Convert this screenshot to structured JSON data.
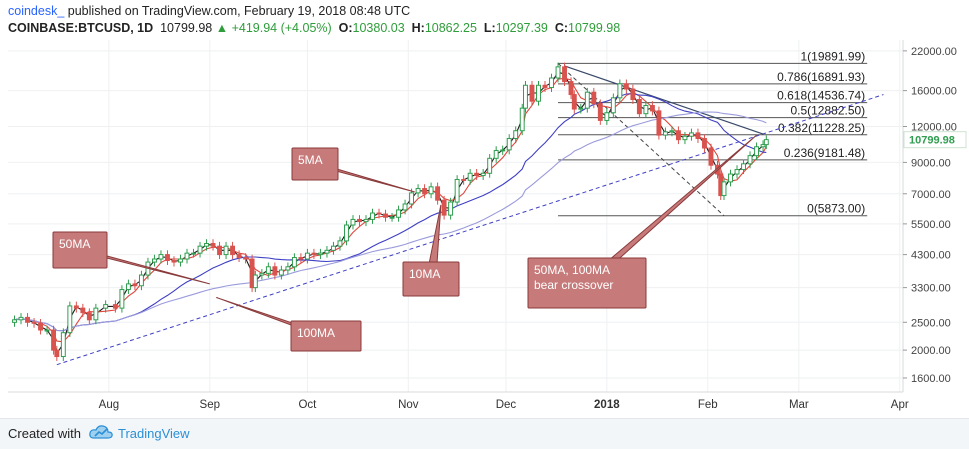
{
  "header": {
    "author": "coindesk_",
    "published": "published on TradingView.com, February 19, 2018 08:48 UTC",
    "symbol": "COINBASE:BTCUSD, 1D",
    "price": "10799.98",
    "change": "+419.94 (+4.05%)",
    "open_label": "O:",
    "open": "10380.03",
    "high_label": "H:",
    "high": "10862.25",
    "low_label": "L:",
    "low": "10297.39",
    "close_label": "C:",
    "close": "10799.98"
  },
  "footer": {
    "created": "Created with",
    "brand": "TradingView"
  },
  "chart_data": {
    "type": "candlestick",
    "y_scale": "log",
    "ylim": [
      1430,
      24000
    ],
    "y_ticks": [
      "22000.00",
      "16000.00",
      "12000.00",
      "9000.00",
      "7000.00",
      "5500.00",
      "4300.00",
      "3300.00",
      "2500.00",
      "2000.00",
      "1600.00"
    ],
    "y_tick_values": [
      22000,
      16000,
      12000,
      9000,
      7000,
      5500,
      4300,
      3300,
      2500,
      2000,
      1600
    ],
    "x_labels": [
      "Aug",
      "Sep",
      "Oct",
      "Nov",
      "Dec",
      "2018",
      "Feb",
      "Mar",
      "Apr"
    ],
    "x_label_dates": [
      "2017-08-01",
      "2017-09-01",
      "2017-10-01",
      "2017-11-01",
      "2017-12-01",
      "2018-01-01",
      "2018-02-01",
      "2018-03-01",
      "2018-04-01"
    ],
    "x_range": [
      "2017-07-01",
      "2018-04-02"
    ],
    "last_price": "10799.98",
    "candles": [
      {
        "date": "2017-07-03",
        "close": 2550
      },
      {
        "date": "2017-07-05",
        "close": 2600
      },
      {
        "date": "2017-07-07",
        "close": 2500
      },
      {
        "date": "2017-07-09",
        "close": 2480
      },
      {
        "date": "2017-07-11",
        "close": 2350
      },
      {
        "date": "2017-07-13",
        "close": 2350
      },
      {
        "date": "2017-07-15",
        "close": 2000
      },
      {
        "date": "2017-07-16",
        "close": 1900
      },
      {
        "date": "2017-07-18",
        "close": 2300
      },
      {
        "date": "2017-07-20",
        "close": 2850
      },
      {
        "date": "2017-07-22",
        "close": 2800
      },
      {
        "date": "2017-07-24",
        "close": 2700
      },
      {
        "date": "2017-07-26",
        "close": 2550
      },
      {
        "date": "2017-07-28",
        "close": 2800
      },
      {
        "date": "2017-07-31",
        "close": 2880
      },
      {
        "date": "2017-08-03",
        "close": 2800
      },
      {
        "date": "2017-08-05",
        "close": 3250
      },
      {
        "date": "2017-08-07",
        "close": 3400
      },
      {
        "date": "2017-08-09",
        "close": 3350
      },
      {
        "date": "2017-08-11",
        "close": 3650
      },
      {
        "date": "2017-08-13",
        "close": 4050
      },
      {
        "date": "2017-08-15",
        "close": 4150
      },
      {
        "date": "2017-08-17",
        "close": 4300
      },
      {
        "date": "2017-08-19",
        "close": 4100
      },
      {
        "date": "2017-08-21",
        "close": 4050
      },
      {
        "date": "2017-08-23",
        "close": 4150
      },
      {
        "date": "2017-08-25",
        "close": 4350
      },
      {
        "date": "2017-08-27",
        "close": 4350
      },
      {
        "date": "2017-08-29",
        "close": 4600
      },
      {
        "date": "2017-08-31",
        "close": 4700
      },
      {
        "date": "2017-09-02",
        "close": 4600
      },
      {
        "date": "2017-09-04",
        "close": 4300
      },
      {
        "date": "2017-09-06",
        "close": 4600
      },
      {
        "date": "2017-09-08",
        "close": 4300
      },
      {
        "date": "2017-09-10",
        "close": 4200
      },
      {
        "date": "2017-09-12",
        "close": 4150
      },
      {
        "date": "2017-09-14",
        "close": 3300
      },
      {
        "date": "2017-09-15",
        "close": 3650
      },
      {
        "date": "2017-09-17",
        "close": 3700
      },
      {
        "date": "2017-09-19",
        "close": 3900
      },
      {
        "date": "2017-09-21",
        "close": 3650
      },
      {
        "date": "2017-09-23",
        "close": 3800
      },
      {
        "date": "2017-09-25",
        "close": 3900
      },
      {
        "date": "2017-09-27",
        "close": 4200
      },
      {
        "date": "2017-09-29",
        "close": 4150
      },
      {
        "date": "2017-10-01",
        "close": 4350
      },
      {
        "date": "2017-10-03",
        "close": 4300
      },
      {
        "date": "2017-10-05",
        "close": 4350
      },
      {
        "date": "2017-10-07",
        "close": 4450
      },
      {
        "date": "2017-10-09",
        "close": 4600
      },
      {
        "date": "2017-10-11",
        "close": 4800
      },
      {
        "date": "2017-10-13",
        "close": 5450
      },
      {
        "date": "2017-10-15",
        "close": 5700
      },
      {
        "date": "2017-10-17",
        "close": 5600
      },
      {
        "date": "2017-10-19",
        "close": 5700
      },
      {
        "date": "2017-10-21",
        "close": 6000
      },
      {
        "date": "2017-10-23",
        "close": 5950
      },
      {
        "date": "2017-10-25",
        "close": 5800
      },
      {
        "date": "2017-10-27",
        "close": 5800
      },
      {
        "date": "2017-10-29",
        "close": 6150
      },
      {
        "date": "2017-10-31",
        "close": 6450
      },
      {
        "date": "2017-11-02",
        "close": 7050
      },
      {
        "date": "2017-11-04",
        "close": 7300
      },
      {
        "date": "2017-11-06",
        "close": 7000
      },
      {
        "date": "2017-11-08",
        "close": 7400
      },
      {
        "date": "2017-11-10",
        "close": 6650
      },
      {
        "date": "2017-11-12",
        "close": 5900
      },
      {
        "date": "2017-11-14",
        "close": 6550
      },
      {
        "date": "2017-11-16",
        "close": 7850
      },
      {
        "date": "2017-11-18",
        "close": 7800
      },
      {
        "date": "2017-11-20",
        "close": 8250
      },
      {
        "date": "2017-11-22",
        "close": 8100
      },
      {
        "date": "2017-11-24",
        "close": 8250
      },
      {
        "date": "2017-11-26",
        "close": 9300
      },
      {
        "date": "2017-11-28",
        "close": 9900
      },
      {
        "date": "2017-11-30",
        "close": 9950
      },
      {
        "date": "2017-12-02",
        "close": 10900
      },
      {
        "date": "2017-12-04",
        "close": 11600
      },
      {
        "date": "2017-12-06",
        "close": 13900
      },
      {
        "date": "2017-12-07",
        "close": 16700
      },
      {
        "date": "2017-12-09",
        "close": 14700
      },
      {
        "date": "2017-12-11",
        "close": 16700
      },
      {
        "date": "2017-12-13",
        "close": 16400
      },
      {
        "date": "2017-12-15",
        "close": 17700
      },
      {
        "date": "2017-12-17",
        "close": 19350
      },
      {
        "date": "2017-12-19",
        "close": 17200
      },
      {
        "date": "2017-12-21",
        "close": 15500
      },
      {
        "date": "2017-12-22",
        "close": 13800
      },
      {
        "date": "2017-12-24",
        "close": 13900
      },
      {
        "date": "2017-12-26",
        "close": 15800
      },
      {
        "date": "2017-12-28",
        "close": 14400
      },
      {
        "date": "2017-12-30",
        "close": 12600
      },
      {
        "date": "2018-01-01",
        "close": 13400
      },
      {
        "date": "2018-01-03",
        "close": 15100
      },
      {
        "date": "2018-01-05",
        "close": 16900
      },
      {
        "date": "2018-01-07",
        "close": 16200
      },
      {
        "date": "2018-01-09",
        "close": 14900
      },
      {
        "date": "2018-01-11",
        "close": 13300
      },
      {
        "date": "2018-01-13",
        "close": 14200
      },
      {
        "date": "2018-01-15",
        "close": 13600
      },
      {
        "date": "2018-01-17",
        "close": 11200
      },
      {
        "date": "2018-01-19",
        "close": 11500
      },
      {
        "date": "2018-01-21",
        "close": 11600
      },
      {
        "date": "2018-01-23",
        "close": 10800
      },
      {
        "date": "2018-01-25",
        "close": 11100
      },
      {
        "date": "2018-01-27",
        "close": 11400
      },
      {
        "date": "2018-01-29",
        "close": 10900
      },
      {
        "date": "2018-01-31",
        "close": 10100
      },
      {
        "date": "2018-02-02",
        "close": 8800
      },
      {
        "date": "2018-02-04",
        "close": 8200
      },
      {
        "date": "2018-02-05",
        "close": 6900
      },
      {
        "date": "2018-02-06",
        "close": 7700
      },
      {
        "date": "2018-02-08",
        "close": 8200
      },
      {
        "date": "2018-02-10",
        "close": 8500
      },
      {
        "date": "2018-02-12",
        "close": 8900
      },
      {
        "date": "2018-02-14",
        "close": 9500
      },
      {
        "date": "2018-02-16",
        "close": 10200
      },
      {
        "date": "2018-02-18",
        "close": 10380
      },
      {
        "date": "2018-02-19",
        "close": 10800
      }
    ],
    "moving_averages": [
      {
        "name": "5MA",
        "color": "#1a1a1a"
      },
      {
        "name": "10MA",
        "color": "#e0463e"
      },
      {
        "name": "50MA",
        "color": "#3f3fc4"
      },
      {
        "name": "100MA",
        "color": "#9b9bdc"
      }
    ],
    "fibonacci": [
      {
        "label": "1(19891.99)",
        "value": 19891.99
      },
      {
        "label": "0.786(16891.93)",
        "value": 16891.93
      },
      {
        "label": "0.618(14536.74)",
        "value": 14536.74
      },
      {
        "label": "0.5(12882.50)",
        "value": 12882.5
      },
      {
        "label": "0.382(11228.25)",
        "value": 11228.25
      },
      {
        "label": "0.236(9181.48)",
        "value": 9181.48
      },
      {
        "label": "0(5873.00)",
        "value": 5873.0
      }
    ],
    "annotations": [
      {
        "text": "5MA"
      },
      {
        "text": "10MA"
      },
      {
        "text": "50MA"
      },
      {
        "text": "100MA"
      },
      {
        "text": "50MA, 100MA bear crossover"
      }
    ]
  }
}
